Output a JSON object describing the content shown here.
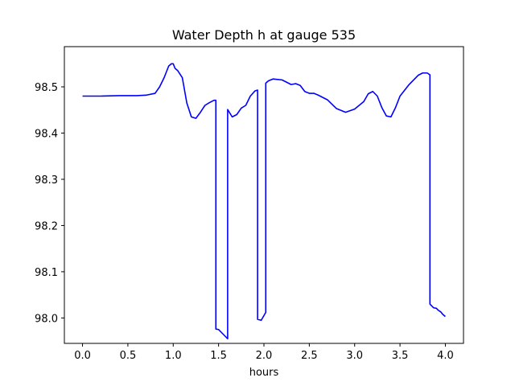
{
  "chart_data": {
    "type": "line",
    "title": "Water Depth h at gauge 535",
    "xlabel": "hours",
    "ylabel": "",
    "xlim": [
      -0.2,
      4.2
    ],
    "ylim": [
      97.945,
      98.587
    ],
    "xticks": [
      0.0,
      0.5,
      1.0,
      1.5,
      2.0,
      2.5,
      3.0,
      3.5,
      4.0
    ],
    "xtick_labels": [
      "0.0",
      "0.5",
      "1.0",
      "1.5",
      "2.0",
      "2.5",
      "3.0",
      "3.5",
      "4.0"
    ],
    "yticks": [
      98.0,
      98.1,
      98.2,
      98.3,
      98.4,
      98.5
    ],
    "ytick_labels": [
      "98.0",
      "98.1",
      "98.2",
      "98.3",
      "98.4",
      "98.5"
    ],
    "grid": false,
    "series": [
      {
        "color": "#0000ff",
        "x": [
          0.0,
          0.2,
          0.4,
          0.6,
          0.7,
          0.8,
          0.85,
          0.9,
          0.95,
          0.98,
          1.0,
          1.02,
          1.05,
          1.1,
          1.15,
          1.2,
          1.25,
          1.3,
          1.35,
          1.4,
          1.45,
          1.47,
          1.47,
          1.5,
          1.55,
          1.6,
          1.6,
          1.65,
          1.7,
          1.75,
          1.8,
          1.85,
          1.9,
          1.93,
          1.93,
          1.97,
          2.02,
          2.02,
          2.05,
          2.1,
          2.15,
          2.2,
          2.25,
          2.3,
          2.35,
          2.4,
          2.45,
          2.5,
          2.55,
          2.6,
          2.7,
          2.8,
          2.9,
          3.0,
          3.1,
          3.15,
          3.2,
          3.25,
          3.3,
          3.35,
          3.4,
          3.45,
          3.5,
          3.6,
          3.7,
          3.75,
          3.8,
          3.83,
          3.83,
          3.87,
          3.9,
          3.92,
          3.95,
          3.97,
          4.0
        ],
        "y": [
          98.48,
          98.48,
          98.481,
          98.481,
          98.482,
          98.486,
          98.5,
          98.52,
          98.545,
          98.55,
          98.55,
          98.54,
          98.535,
          98.52,
          98.465,
          98.435,
          98.432,
          98.445,
          98.46,
          98.466,
          98.471,
          98.471,
          97.976,
          97.975,
          97.965,
          97.955,
          98.451,
          98.435,
          98.44,
          98.454,
          98.46,
          98.48,
          98.491,
          98.493,
          97.997,
          97.995,
          98.012,
          98.508,
          98.513,
          98.517,
          98.516,
          98.515,
          98.51,
          98.505,
          98.507,
          98.503,
          98.49,
          98.486,
          98.486,
          98.482,
          98.472,
          98.453,
          98.445,
          98.452,
          98.468,
          98.485,
          98.49,
          98.48,
          98.455,
          98.437,
          98.435,
          98.455,
          98.48,
          98.505,
          98.525,
          98.53,
          98.53,
          98.526,
          98.03,
          98.022,
          98.021,
          98.017,
          98.013,
          98.008,
          98.003
        ]
      }
    ]
  }
}
